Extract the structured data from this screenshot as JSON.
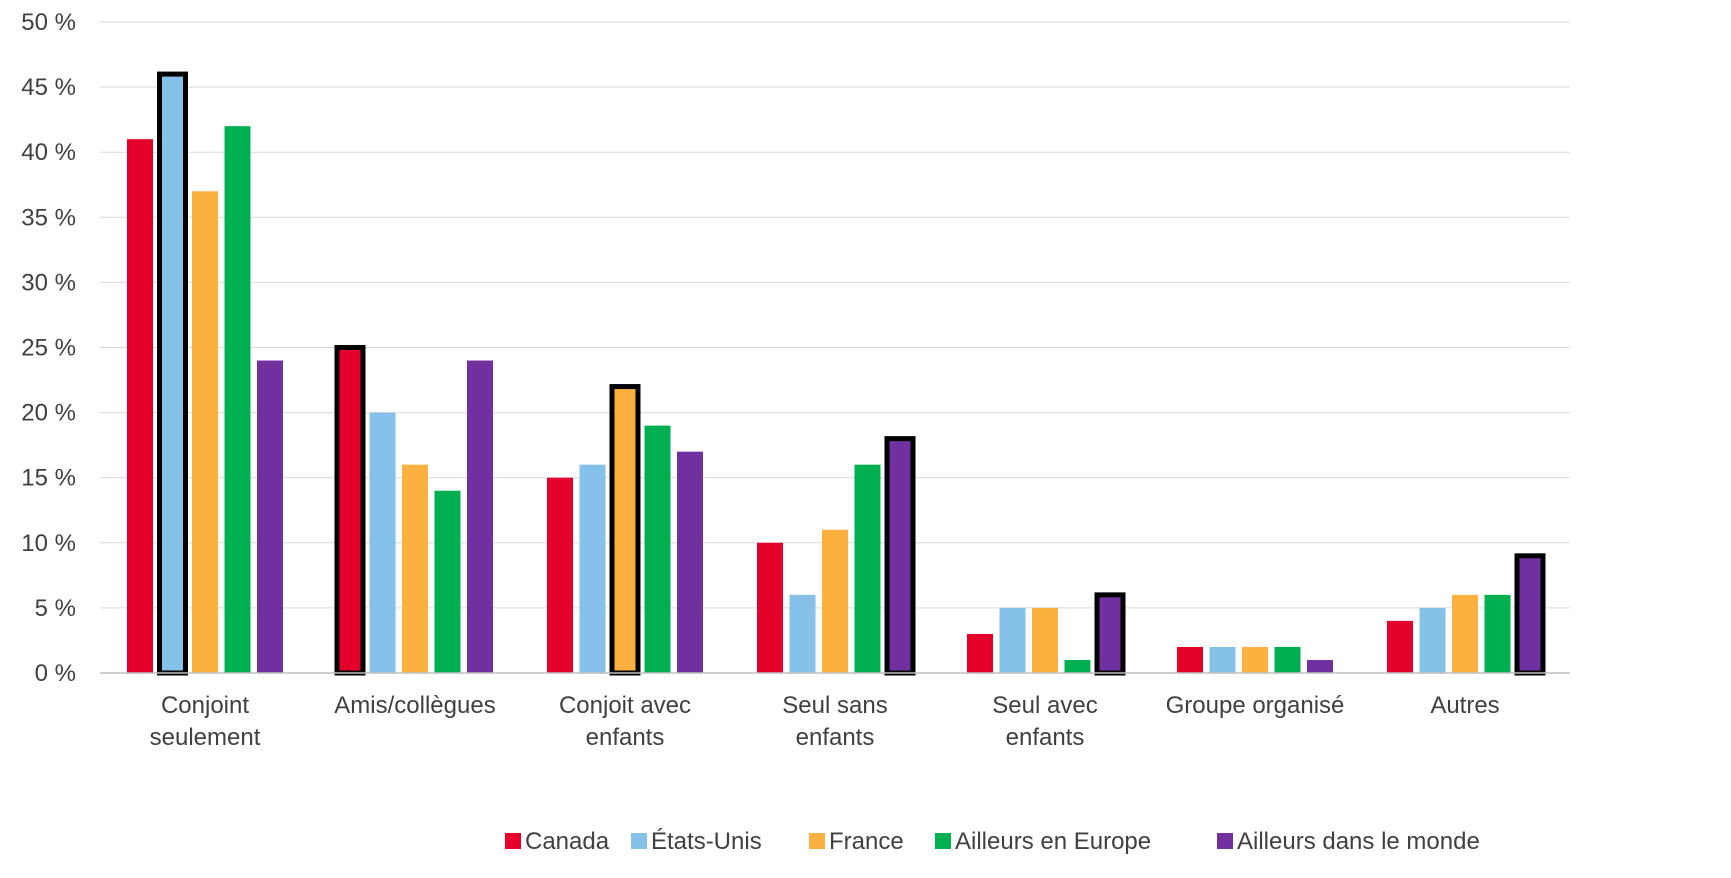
{
  "chart_data": {
    "type": "bar",
    "title": "",
    "xlabel": "",
    "ylabel": "",
    "ylim": [
      0,
      50
    ],
    "y_tick_step": 5,
    "y_tick_labels": [
      "0 %",
      "5 %",
      "10 %",
      "15 %",
      "20 %",
      "25 %",
      "30 %",
      "35 %",
      "40 %",
      "45 %",
      "50 %"
    ],
    "grid": true,
    "legend_position": "bottom",
    "categories": [
      [
        "Conjoint",
        "seulement"
      ],
      [
        "Amis/collègues"
      ],
      [
        "Conjoit avec",
        "enfants"
      ],
      [
        "Seul sans",
        "enfants"
      ],
      [
        "Seul avec",
        "enfants"
      ],
      [
        "Groupe organisé"
      ],
      [
        "Autres"
      ]
    ],
    "series": [
      {
        "name": "Canada",
        "color": "#e4002b",
        "values": [
          41,
          25,
          15,
          10,
          3,
          2,
          4
        ]
      },
      {
        "name": "États-Unis",
        "color": "#85c1e9",
        "values": [
          46,
          20,
          16,
          6,
          5,
          2,
          5
        ]
      },
      {
        "name": "France",
        "color": "#fbb040",
        "values": [
          37,
          16,
          22,
          11,
          5,
          2,
          6
        ]
      },
      {
        "name": "Ailleurs en Europe",
        "color": "#00b050",
        "values": [
          42,
          14,
          19,
          16,
          1,
          2,
          6
        ]
      },
      {
        "name": "Ailleurs dans le monde",
        "color": "#7030a0",
        "values": [
          24,
          24,
          17,
          18,
          6,
          1,
          9
        ]
      }
    ],
    "highlighted": [
      {
        "series": 1,
        "category": 0
      },
      {
        "series": 0,
        "category": 1
      },
      {
        "series": 2,
        "category": 2
      },
      {
        "series": 4,
        "category": 3
      },
      {
        "series": 4,
        "category": 4
      },
      {
        "series": 4,
        "category": 6
      }
    ],
    "colors": {
      "grid": "#d9d9d9",
      "axis": "#bfbfbf",
      "text": "#404040",
      "highlight_border": "#000000"
    }
  }
}
